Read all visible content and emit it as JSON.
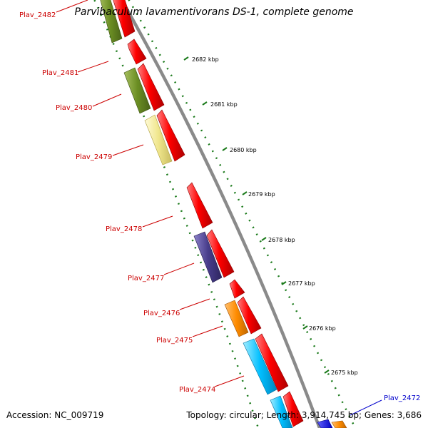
{
  "title": "Parvibaculum lavamentivorans DS-1, complete genome",
  "footer": {
    "accession": "Accession: NC_009719",
    "summary": "Topology: circular; Length: 3,914,745 bp; Genes: 3,686"
  },
  "colors": {
    "forward_gene": "#ff0000",
    "backbone": "#8a8a8a",
    "tick": "#1a7a1a",
    "gene_label": "#cc0000",
    "blue_label": "#0000cc",
    "olive": "#6b8e23",
    "khaki": "#f0e68c",
    "purple": "#483d8b",
    "orange": "#ff8c00",
    "cyan": "#00bfff"
  },
  "diagram": {
    "kbp_labels": [
      "2682 kbp",
      "2681 kbp",
      "2680 kbp",
      "2679 kbp",
      "2678 kbp",
      "2677 kbp",
      "2676 kbp",
      "2675 kbp"
    ],
    "gene_labels": [
      {
        "name": "Plav_2482",
        "color": "red"
      },
      {
        "name": "Plav_2481",
        "color": "red"
      },
      {
        "name": "Plav_2480",
        "color": "red"
      },
      {
        "name": "Plav_2479",
        "color": "red"
      },
      {
        "name": "Plav_2478",
        "color": "red"
      },
      {
        "name": "Plav_2477",
        "color": "red"
      },
      {
        "name": "Plav_2476",
        "color": "red"
      },
      {
        "name": "Plav_2475",
        "color": "red"
      },
      {
        "name": "Plav_2474",
        "color": "red"
      },
      {
        "name": "Plav_2472",
        "color": "blue"
      }
    ]
  }
}
